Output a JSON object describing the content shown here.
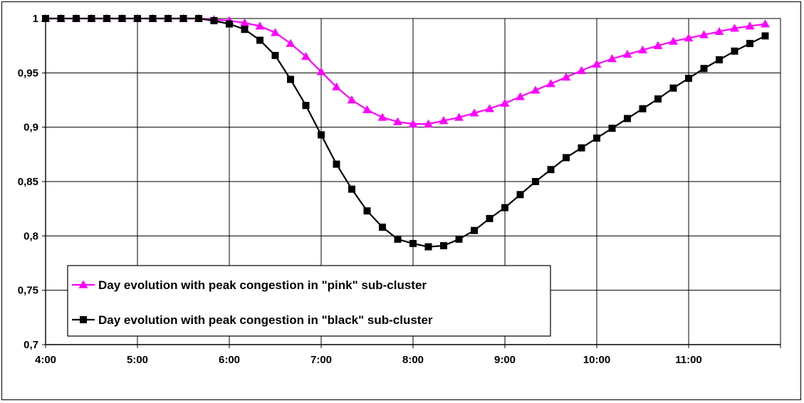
{
  "chart_data": {
    "type": "line",
    "title": "",
    "xlabel": "",
    "ylabel": "",
    "x_ticks": [
      "4:00",
      "5:00",
      "6:00",
      "7:00",
      "8:00",
      "9:00",
      "10:00",
      "11:00"
    ],
    "y_ticks": [
      "0,7",
      "0,75",
      "0,8",
      "0,85",
      "0,9",
      "0,95",
      "1"
    ],
    "xlim_hours": [
      4,
      12
    ],
    "ylim": [
      0.7,
      1.0
    ],
    "grid": true,
    "legend_position": "bottom-left",
    "x": [
      4.0,
      4.1667,
      4.3333,
      4.5,
      4.6667,
      4.8333,
      5.0,
      5.1667,
      5.3333,
      5.5,
      5.6667,
      5.8333,
      6.0,
      6.1667,
      6.3333,
      6.5,
      6.6667,
      6.8333,
      7.0,
      7.1667,
      7.3333,
      7.5,
      7.6667,
      7.8333,
      8.0,
      8.1667,
      8.3333,
      8.5,
      8.6667,
      8.8333,
      9.0,
      9.1667,
      9.3333,
      9.5,
      9.6667,
      9.8333,
      10.0,
      10.1667,
      10.3333,
      10.5,
      10.6667,
      10.8333,
      11.0,
      11.1667,
      11.3333,
      11.5,
      11.6667,
      11.8333
    ],
    "series": [
      {
        "name": "Day evolution with peak congestion in \"pink\" sub-cluster",
        "color": "#ff00ff",
        "marker": "triangle",
        "values": [
          1.0,
          1.0,
          1.0,
          1.0,
          1.0,
          1.0,
          1.0,
          1.0,
          1.0,
          1.0,
          1.0,
          0.999,
          0.998,
          0.996,
          0.993,
          0.987,
          0.977,
          0.965,
          0.951,
          0.937,
          0.925,
          0.916,
          0.909,
          0.905,
          0.903,
          0.903,
          0.906,
          0.909,
          0.913,
          0.917,
          0.922,
          0.928,
          0.934,
          0.94,
          0.946,
          0.952,
          0.958,
          0.963,
          0.967,
          0.971,
          0.975,
          0.979,
          0.982,
          0.985,
          0.988,
          0.991,
          0.993,
          0.995
        ]
      },
      {
        "name": "Day evolution with peak congestion in \"black\" sub-cluster",
        "color": "#000000",
        "marker": "square",
        "values": [
          1.0,
          1.0,
          1.0,
          1.0,
          1.0,
          1.0,
          1.0,
          1.0,
          1.0,
          1.0,
          1.0,
          0.998,
          0.995,
          0.99,
          0.98,
          0.966,
          0.944,
          0.92,
          0.893,
          0.866,
          0.843,
          0.823,
          0.808,
          0.797,
          0.793,
          0.79,
          0.791,
          0.797,
          0.805,
          0.816,
          0.826,
          0.838,
          0.85,
          0.861,
          0.872,
          0.881,
          0.89,
          0.899,
          0.908,
          0.917,
          0.926,
          0.936,
          0.945,
          0.954,
          0.962,
          0.97,
          0.977,
          0.984
        ]
      }
    ]
  }
}
